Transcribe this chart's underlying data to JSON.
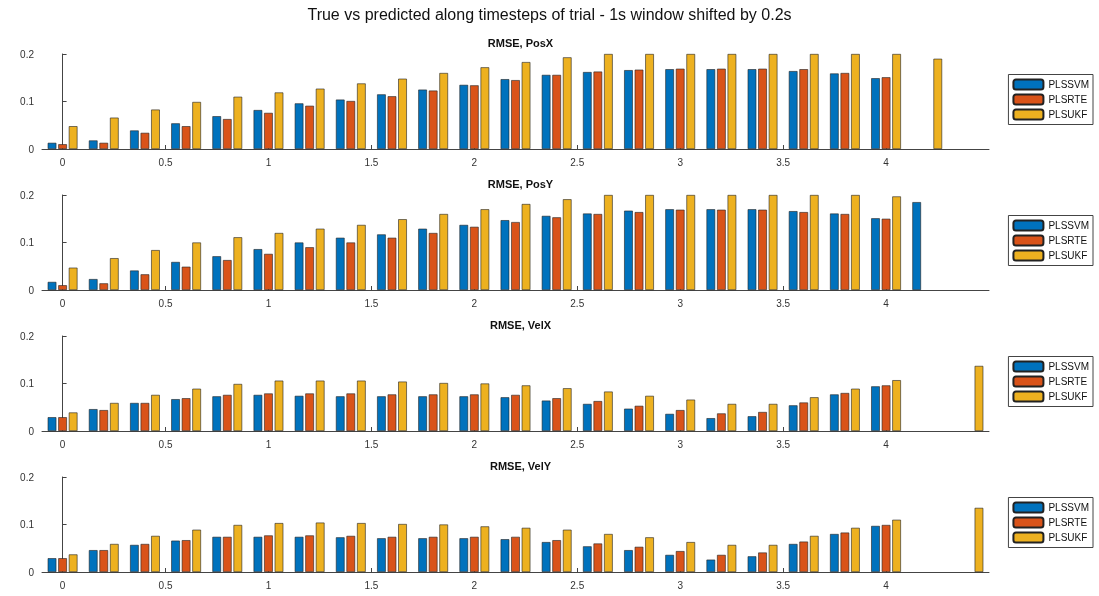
{
  "chart_data": [
    {
      "type": "bar",
      "title": "RMSE, PosX",
      "annotations": [
        "True vs predicted along timesteps of trial - 1s window shifted by 0.2s"
      ],
      "x": [
        0,
        0.2,
        0.4,
        0.6,
        0.8,
        1.0,
        1.2,
        1.4,
        1.6,
        1.8,
        2.0,
        2.2,
        2.4,
        2.6,
        2.8,
        3.0,
        3.2,
        3.4,
        3.6,
        3.8,
        4.0,
        4.2
      ],
      "series": [
        {
          "name": "PLSSVM",
          "color": "#0072bd",
          "values": [
            0.013,
            0.018,
            0.039,
            0.054,
            0.069,
            0.082,
            0.096,
            0.104,
            0.115,
            0.125,
            0.135,
            0.147,
            0.156,
            0.162,
            0.166,
            0.168,
            0.168,
            0.168,
            0.164,
            0.159,
            0.149,
            null
          ]
        },
        {
          "name": "PLSRTE",
          "color": "#d95319",
          "values": [
            0.01,
            0.013,
            0.034,
            0.048,
            0.063,
            0.076,
            0.091,
            0.101,
            0.111,
            0.123,
            0.134,
            0.145,
            0.156,
            0.163,
            0.167,
            0.169,
            0.169,
            0.169,
            0.168,
            0.16,
            0.151,
            null
          ]
        },
        {
          "name": "PLSUKF",
          "color": "#edb120",
          "values": [
            0.048,
            0.066,
            0.083,
            0.099,
            0.11,
            0.119,
            0.127,
            0.138,
            0.148,
            0.16,
            0.172,
            0.183,
            0.193,
            0.2,
            0.2,
            0.2,
            0.2,
            0.2,
            0.2,
            0.2,
            0.2,
            0.19
          ]
        }
      ],
      "xlim": [
        -0.1,
        4.5
      ],
      "xticks": [
        0,
        0.5,
        1,
        1.5,
        2,
        2.5,
        3,
        3.5,
        4
      ],
      "ylim": [
        0,
        0.2
      ],
      "yticks": [
        0,
        0.1,
        0.2
      ],
      "legend": "right"
    },
    {
      "type": "bar",
      "title": "RMSE, PosY",
      "x": [
        0,
        0.2,
        0.4,
        0.6,
        0.8,
        1.0,
        1.2,
        1.4,
        1.6,
        1.8,
        2.0,
        2.2,
        2.4,
        2.6,
        2.8,
        3.0,
        3.2,
        3.4,
        3.6,
        3.8,
        4.0,
        4.2
      ],
      "series": [
        {
          "name": "PLSSVM",
          "color": "#0072bd",
          "values": [
            0.017,
            0.023,
            0.041,
            0.059,
            0.071,
            0.086,
            0.1,
            0.11,
            0.117,
            0.129,
            0.137,
            0.147,
            0.156,
            0.161,
            0.167,
            0.17,
            0.17,
            0.17,
            0.166,
            0.161,
            0.151,
            0.185
          ]
        },
        {
          "name": "PLSRTE",
          "color": "#d95319",
          "values": [
            0.01,
            0.014,
            0.033,
            0.049,
            0.063,
            0.076,
            0.09,
            0.1,
            0.11,
            0.12,
            0.133,
            0.143,
            0.153,
            0.16,
            0.164,
            0.169,
            0.169,
            0.169,
            0.164,
            0.16,
            0.15,
            null
          ]
        },
        {
          "name": "PLSUKF",
          "color": "#edb120",
          "values": [
            0.047,
            0.067,
            0.084,
            0.1,
            0.111,
            0.12,
            0.129,
            0.137,
            0.149,
            0.16,
            0.17,
            0.181,
            0.191,
            0.2,
            0.2,
            0.2,
            0.2,
            0.2,
            0.2,
            0.2,
            0.197,
            null
          ]
        }
      ],
      "xlim": [
        -0.1,
        4.5
      ],
      "xticks": [
        0,
        0.5,
        1,
        1.5,
        2,
        2.5,
        3,
        3.5,
        4
      ],
      "ylim": [
        0,
        0.2
      ],
      "yticks": [
        0,
        0.1,
        0.2
      ],
      "legend": "right"
    },
    {
      "type": "bar",
      "title": "RMSE, VelX",
      "x": [
        0,
        0.2,
        0.4,
        0.6,
        0.8,
        1.0,
        1.2,
        1.4,
        1.6,
        1.8,
        2.0,
        2.2,
        2.4,
        2.6,
        2.8,
        3.0,
        3.2,
        3.4,
        3.6,
        3.8,
        4.0,
        4.2,
        4.4
      ],
      "series": [
        {
          "name": "PLSSVM",
          "color": "#0072bd",
          "values": [
            0.029,
            0.046,
            0.059,
            0.067,
            0.073,
            0.076,
            0.074,
            0.073,
            0.073,
            0.073,
            0.073,
            0.071,
            0.064,
            0.057,
            0.047,
            0.036,
            0.027,
            0.031,
            0.054,
            0.077,
            0.094,
            null,
            null
          ]
        },
        {
          "name": "PLSRTE",
          "color": "#d95319",
          "values": [
            0.029,
            0.044,
            0.059,
            0.069,
            0.076,
            0.079,
            0.079,
            0.079,
            0.077,
            0.077,
            0.077,
            0.076,
            0.069,
            0.063,
            0.053,
            0.044,
            0.037,
            0.04,
            0.06,
            0.08,
            0.096,
            null,
            null
          ]
        },
        {
          "name": "PLSUKF",
          "color": "#edb120",
          "values": [
            0.039,
            0.059,
            0.076,
            0.089,
            0.099,
            0.106,
            0.106,
            0.106,
            0.104,
            0.101,
            0.1,
            0.096,
            0.09,
            0.083,
            0.074,
            0.066,
            0.057,
            0.057,
            0.071,
            0.089,
            0.107,
            null,
            0.137
          ]
        }
      ],
      "xlim": [
        -0.1,
        4.5
      ],
      "xticks": [
        0,
        0.5,
        1,
        1.5,
        2,
        2.5,
        3,
        3.5,
        4
      ],
      "ylim": [
        0,
        0.2
      ],
      "yticks": [
        0,
        0.1,
        0.2
      ],
      "legend": "right"
    },
    {
      "type": "bar",
      "title": "RMSE, VelY",
      "x": [
        0,
        0.2,
        0.4,
        0.6,
        0.8,
        1.0,
        1.2,
        1.4,
        1.6,
        1.8,
        2.0,
        2.2,
        2.4,
        2.6,
        2.8,
        3.0,
        3.2,
        3.4,
        3.6,
        3.8,
        4.0,
        4.2,
        4.4
      ],
      "series": [
        {
          "name": "PLSSVM",
          "color": "#0072bd",
          "values": [
            0.029,
            0.046,
            0.057,
            0.066,
            0.074,
            0.074,
            0.074,
            0.073,
            0.071,
            0.071,
            0.071,
            0.069,
            0.063,
            0.054,
            0.046,
            0.036,
            0.026,
            0.033,
            0.059,
            0.08,
            0.097,
            null,
            null
          ]
        },
        {
          "name": "PLSRTE",
          "color": "#d95319",
          "values": [
            0.029,
            0.046,
            0.059,
            0.067,
            0.074,
            0.077,
            0.077,
            0.076,
            0.074,
            0.074,
            0.074,
            0.074,
            0.067,
            0.06,
            0.053,
            0.044,
            0.036,
            0.041,
            0.064,
            0.083,
            0.099,
            null,
            null
          ]
        },
        {
          "name": "PLSUKF",
          "color": "#edb120",
          "values": [
            0.037,
            0.059,
            0.076,
            0.089,
            0.099,
            0.103,
            0.104,
            0.103,
            0.101,
            0.1,
            0.096,
            0.093,
            0.089,
            0.08,
            0.073,
            0.063,
            0.057,
            0.057,
            0.076,
            0.093,
            0.11,
            null,
            0.135
          ]
        }
      ],
      "xlim": [
        -0.1,
        4.5
      ],
      "xticks": [
        0,
        0.5,
        1,
        1.5,
        2,
        2.5,
        3,
        3.5,
        4
      ],
      "ylim": [
        0,
        0.2
      ],
      "yticks": [
        0,
        0.1,
        0.2
      ],
      "legend": "right"
    }
  ]
}
